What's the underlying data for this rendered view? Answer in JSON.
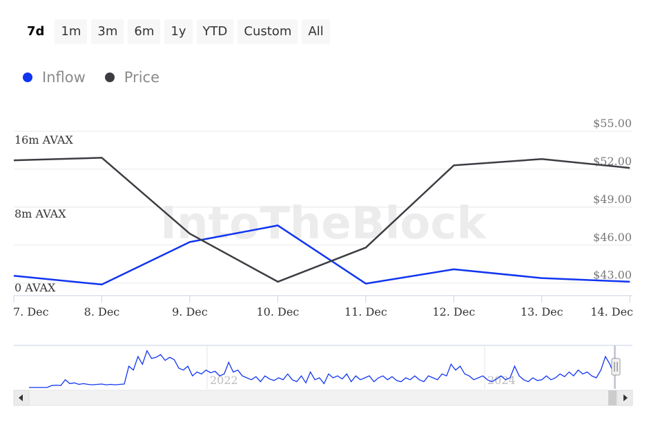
{
  "range_buttons": [
    {
      "label": "7d",
      "active": true
    },
    {
      "label": "1m",
      "active": false
    },
    {
      "label": "3m",
      "active": false
    },
    {
      "label": "6m",
      "active": false
    },
    {
      "label": "1y",
      "active": false
    },
    {
      "label": "YTD",
      "active": false
    },
    {
      "label": "Custom",
      "active": false
    },
    {
      "label": "All",
      "active": false
    }
  ],
  "legend": [
    {
      "label": "Inflow",
      "color": "#1034f0"
    },
    {
      "label": "Price",
      "color": "#3b3d42"
    }
  ],
  "watermark": "IntoTheBlock",
  "chart_data": {
    "type": "line",
    "x": [
      "7. Dec",
      "8. Dec",
      "9. Dec",
      "10. Dec",
      "11. Dec",
      "12. Dec",
      "13. Dec",
      "14. Dec"
    ],
    "left_axis": {
      "ticks": [
        "0 AVAX",
        "8m AVAX",
        "16m AVAX"
      ],
      "range": [
        0,
        16000000
      ]
    },
    "right_axis": {
      "ticks": [
        "$43.00",
        "$46.00",
        "$49.00",
        "$52.00",
        "$55.00"
      ],
      "range": [
        42,
        55
      ]
    },
    "series": [
      {
        "name": "Inflow",
        "axis": "left",
        "color": "#1034f0",
        "values": [
          2150000,
          1200000,
          5800000,
          7600000,
          1300000,
          2850000,
          1900000,
          1500000
        ]
      },
      {
        "name": "Price",
        "axis": "right",
        "color": "#3b3d42",
        "values": [
          52.7,
          52.9,
          46.9,
          43.1,
          45.8,
          52.3,
          52.8,
          52.1
        ]
      }
    ],
    "grid": true,
    "navigator": {
      "labels": [
        "2022",
        "2024"
      ],
      "values": [
        0,
        0,
        0,
        0,
        0,
        0.05,
        0.06,
        0.05,
        0.2,
        0.1,
        0.12,
        0.08,
        0.1,
        0.08,
        0.07,
        0.08,
        0.09,
        0.07,
        0.08,
        0.07,
        0.08,
        0.09,
        0.55,
        0.45,
        0.8,
        0.6,
        0.95,
        0.75,
        0.78,
        0.85,
        0.7,
        0.78,
        0.72,
        0.5,
        0.45,
        0.55,
        0.3,
        0.4,
        0.35,
        0.45,
        0.38,
        0.42,
        0.3,
        0.35,
        0.65,
        0.4,
        0.45,
        0.3,
        0.25,
        0.2,
        0.28,
        0.15,
        0.3,
        0.22,
        0.18,
        0.25,
        0.2,
        0.35,
        0.2,
        0.15,
        0.3,
        0.12,
        0.4,
        0.2,
        0.25,
        0.1,
        0.35,
        0.25,
        0.3,
        0.22,
        0.35,
        0.15,
        0.3,
        0.2,
        0.25,
        0.3,
        0.15,
        0.25,
        0.3,
        0.2,
        0.28,
        0.18,
        0.15,
        0.25,
        0.2,
        0.3,
        0.2,
        0.15,
        0.3,
        0.25,
        0.2,
        0.35,
        0.3,
        0.6,
        0.45,
        0.55,
        0.35,
        0.3,
        0.2,
        0.25,
        0.3,
        0.2,
        0.15,
        0.22,
        0.3,
        0.2,
        0.25,
        0.55,
        0.3,
        0.2,
        0.15,
        0.25,
        0.18,
        0.2,
        0.3,
        0.2,
        0.25,
        0.35,
        0.28,
        0.4,
        0.3,
        0.45,
        0.35,
        0.4,
        0.3,
        0.25,
        0.45,
        0.8,
        0.6,
        0.3
      ]
    }
  }
}
